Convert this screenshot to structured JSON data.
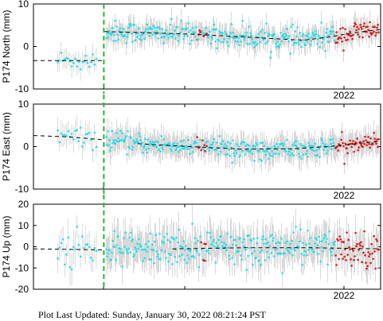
{
  "footer": {
    "text": "Plot Last Updated:   Sunday, January 30, 2022 08:21:24 PST"
  },
  "colors": {
    "normal_points": "#22dde8",
    "recent_points": "#d81818",
    "error_bars": "#c8c8c8",
    "trend_line": "#000000",
    "offset_line": "#22bb22"
  },
  "chart_data": [
    {
      "type": "scatter",
      "ylabel": "P174 North (mm)",
      "ylim": [
        -10,
        10
      ],
      "yticks": [
        "10",
        "0",
        "-10"
      ],
      "xticks": [
        "2022"
      ],
      "series": [],
      "offset_x": 0.205,
      "recent_start": 0.87,
      "trend": [
        [
          0.0,
          -3.3
        ],
        [
          0.2,
          -3.3
        ],
        [
          0.205,
          3.5
        ],
        [
          0.3,
          3.3
        ],
        [
          0.45,
          2.9
        ],
        [
          0.6,
          2.3
        ],
        [
          0.7,
          1.8
        ],
        [
          0.78,
          1.5
        ],
        [
          0.85,
          2.2
        ],
        [
          0.92,
          3.2
        ],
        [
          1.0,
          4.0
        ]
      ],
      "scatter_sd": 1.3,
      "error_mm": 2.2
    },
    {
      "type": "scatter",
      "ylabel": "P174 East (mm)",
      "ylim": [
        -10,
        10
      ],
      "yticks": [
        "10",
        "0",
        "-10"
      ],
      "xticks": [
        "2022"
      ],
      "series": [],
      "offset_x": 0.205,
      "recent_start": 0.87,
      "trend": [
        [
          0.0,
          2.6
        ],
        [
          0.1,
          2.3
        ],
        [
          0.2,
          1.6
        ],
        [
          0.3,
          0.7
        ],
        [
          0.45,
          0.0
        ],
        [
          0.6,
          -0.6
        ],
        [
          0.75,
          -0.5
        ],
        [
          0.85,
          0.0
        ],
        [
          0.92,
          0.6
        ],
        [
          1.0,
          1.3
        ]
      ],
      "scatter_sd": 1.1,
      "error_mm": 2.6
    },
    {
      "type": "scatter",
      "ylabel": "P174 Up (mm)",
      "ylim": [
        -20,
        20
      ],
      "yticks": [
        "20",
        "10",
        "0",
        "-10",
        "-20"
      ],
      "xticks": [
        "2022"
      ],
      "series": [],
      "offset_x": 0.205,
      "recent_start": 0.87,
      "trend": [
        [
          0.0,
          -1.0
        ],
        [
          0.2,
          -1.5
        ],
        [
          0.4,
          -1.0
        ],
        [
          0.6,
          -0.5
        ],
        [
          0.8,
          -0.5
        ],
        [
          1.0,
          -1.0
        ]
      ],
      "scatter_sd": 4.2,
      "error_mm": 7.0
    }
  ]
}
